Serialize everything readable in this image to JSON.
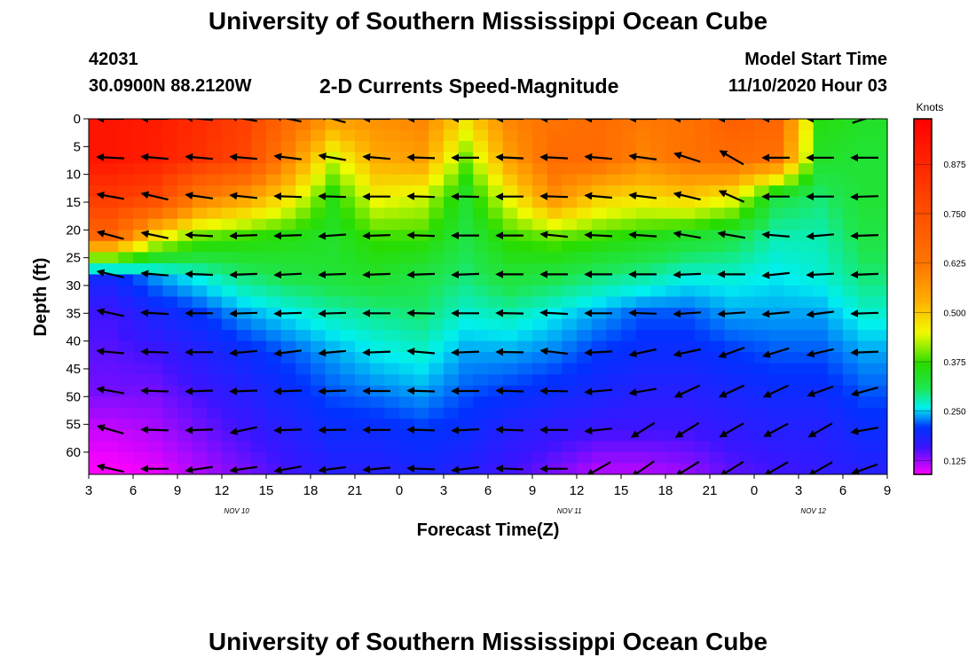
{
  "header": {
    "title": "University of Southern Mississippi Ocean Cube",
    "station": "42031",
    "coords": "30.0900N 88.2120W",
    "subtitle": "2-D Currents Speed-Magnitude",
    "start_label": "Model Start Time",
    "start_value": "11/10/2020 Hour 03"
  },
  "footer": {
    "title": "University of Southern Mississippi Ocean Cube"
  },
  "chart_data": {
    "type": "heatmap",
    "xlabel": "Forecast Time(Z)",
    "ylabel": "Depth (ft)",
    "x_range_hours": [
      0,
      54
    ],
    "x_tick_labels": [
      "3",
      "6",
      "9",
      "12",
      "15",
      "18",
      "21",
      "0",
      "3",
      "6",
      "9",
      "12",
      "15",
      "18",
      "21",
      "0",
      "3",
      "6",
      "9"
    ],
    "date_labels": [
      {
        "label": "NOV 10",
        "hour": 10
      },
      {
        "label": "NOV 11",
        "hour": 32.5
      },
      {
        "label": "NOV 12",
        "hour": 49
      }
    ],
    "ylim": [
      0,
      64
    ],
    "y_ticks": [
      0,
      5,
      10,
      15,
      20,
      25,
      30,
      35,
      40,
      45,
      50,
      55,
      60
    ],
    "colorbar": {
      "label": "Knots",
      "range": [
        0.09,
        0.99
      ],
      "ticks": [
        "0.125",
        "0.250",
        "0.375",
        "0.500",
        "0.625",
        "0.750",
        "0.875"
      ],
      "tick_values": [
        0.125,
        0.25,
        0.375,
        0.5,
        0.625,
        0.75,
        0.875
      ]
    },
    "depths": [
      0,
      7,
      14,
      21,
      28,
      35,
      42,
      49,
      56,
      63
    ],
    "times": [
      1.5,
      4.5,
      7.5,
      10.5,
      13.5,
      16.5,
      19.5,
      22.5,
      25.5,
      28.5,
      31.5,
      34.5,
      37.5,
      40.5,
      43.5,
      46.5,
      49.5,
      52.5
    ],
    "speed": [
      [
        0.93,
        0.91,
        0.86,
        0.8,
        0.66,
        0.56,
        0.58,
        0.6,
        0.48,
        0.6,
        0.64,
        0.66,
        0.62,
        0.64,
        0.7,
        0.68,
        0.36,
        0.34
      ],
      [
        0.93,
        0.9,
        0.84,
        0.78,
        0.6,
        0.44,
        0.54,
        0.56,
        0.4,
        0.56,
        0.66,
        0.66,
        0.6,
        0.64,
        0.66,
        0.64,
        0.34,
        0.33
      ],
      [
        0.82,
        0.78,
        0.62,
        0.56,
        0.48,
        0.36,
        0.46,
        0.44,
        0.34,
        0.46,
        0.58,
        0.5,
        0.48,
        0.5,
        0.46,
        0.32,
        0.3,
        0.33
      ],
      [
        0.68,
        0.48,
        0.4,
        0.38,
        0.36,
        0.34,
        0.38,
        0.38,
        0.32,
        0.38,
        0.4,
        0.38,
        0.36,
        0.34,
        0.32,
        0.28,
        0.28,
        0.32
      ],
      [
        0.2,
        0.24,
        0.27,
        0.3,
        0.32,
        0.33,
        0.34,
        0.32,
        0.3,
        0.33,
        0.32,
        0.3,
        0.29,
        0.27,
        0.27,
        0.26,
        0.27,
        0.3
      ],
      [
        0.16,
        0.19,
        0.21,
        0.24,
        0.26,
        0.28,
        0.29,
        0.3,
        0.27,
        0.28,
        0.26,
        0.24,
        0.22,
        0.22,
        0.24,
        0.24,
        0.24,
        0.27
      ],
      [
        0.15,
        0.16,
        0.18,
        0.2,
        0.22,
        0.24,
        0.26,
        0.27,
        0.24,
        0.24,
        0.23,
        0.21,
        0.2,
        0.2,
        0.21,
        0.22,
        0.22,
        0.24
      ],
      [
        0.14,
        0.14,
        0.16,
        0.18,
        0.2,
        0.22,
        0.23,
        0.24,
        0.22,
        0.21,
        0.2,
        0.19,
        0.18,
        0.18,
        0.19,
        0.2,
        0.2,
        0.22
      ],
      [
        0.11,
        0.12,
        0.14,
        0.16,
        0.18,
        0.2,
        0.2,
        0.21,
        0.2,
        0.18,
        0.17,
        0.16,
        0.16,
        0.16,
        0.17,
        0.18,
        0.18,
        0.2
      ],
      [
        0.09,
        0.1,
        0.12,
        0.14,
        0.16,
        0.18,
        0.18,
        0.19,
        0.18,
        0.16,
        0.14,
        0.12,
        0.12,
        0.13,
        0.15,
        0.16,
        0.17,
        0.18
      ]
    ],
    "vectors": {
      "times": [
        1.5,
        4.5,
        7.5,
        10.5,
        13.5,
        16.5,
        19.5,
        22.5,
        25.5,
        28.5,
        31.5,
        34.5,
        37.5,
        40.5,
        43.5,
        46.5,
        49.5,
        52.5
      ],
      "depths": [
        0,
        7,
        14,
        21,
        28,
        35,
        42,
        49,
        56,
        63
      ],
      "bearing_deg": [
        [
          270,
          270,
          275,
          280,
          282,
          286,
          270,
          270,
          270,
          270,
          270,
          270,
          270,
          270,
          270,
          270,
          270,
          72
        ],
        [
          273,
          275,
          275,
          275,
          277,
          280,
          275,
          272,
          270,
          273,
          273,
          275,
          278,
          288,
          300,
          270,
          270,
          270
        ],
        [
          280,
          283,
          278,
          276,
          272,
          272,
          270,
          272,
          271,
          270,
          272,
          275,
          277,
          283,
          294,
          270,
          270,
          268
        ],
        [
          285,
          282,
          273,
          268,
          268,
          266,
          268,
          272,
          270,
          270,
          276,
          273,
          274,
          280,
          280,
          275,
          265,
          268
        ],
        [
          283,
          275,
          272,
          268,
          267,
          268,
          268,
          268,
          268,
          270,
          270,
          270,
          270,
          268,
          270,
          264,
          267,
          268
        ],
        [
          282,
          273,
          270,
          268,
          268,
          268,
          270,
          271,
          270,
          271,
          273,
          270,
          272,
          266,
          266,
          265,
          263,
          268
        ],
        [
          275,
          272,
          270,
          265,
          263,
          265,
          268,
          275,
          268,
          271,
          277,
          267,
          258,
          258,
          250,
          253,
          257,
          268
        ],
        [
          280,
          272,
          268,
          268,
          268,
          268,
          270,
          272,
          270,
          272,
          271,
          265,
          260,
          245,
          245,
          245,
          250,
          255
        ],
        [
          286,
          272,
          268,
          258,
          268,
          269,
          270,
          272,
          267,
          272,
          270,
          264,
          238,
          238,
          240,
          242,
          240,
          260
        ],
        [
          283,
          270,
          262,
          262,
          260,
          263,
          265,
          272,
          263,
          272,
          270,
          240,
          235,
          238,
          238,
          240,
          240,
          250
        ]
      ]
    }
  }
}
